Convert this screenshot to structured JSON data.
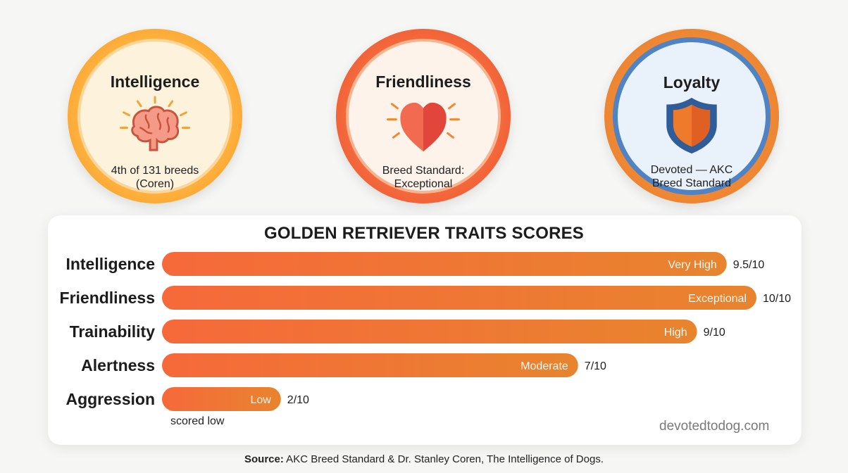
{
  "badges": [
    {
      "title": "Intelligence",
      "caption_line1": "4th of 131 breeds",
      "caption_line2": "(Coren)",
      "icon": "brain-icon"
    },
    {
      "title": "Friendliness",
      "caption_line1": "Breed Standard:",
      "caption_line2": "Exceptional",
      "icon": "heart-icon"
    },
    {
      "title": "Loyalty",
      "caption_line1": "Devoted — AKC",
      "caption_line2": "Breed Standard",
      "icon": "shield-icon"
    }
  ],
  "chart_data": {
    "type": "bar",
    "orientation": "horizontal",
    "title": "GOLDEN RETRIEVER TRAITS SCORES",
    "categories": [
      "Intelligence",
      "Friendliness",
      "Trainability",
      "Alertness",
      "Aggression"
    ],
    "values": [
      9.5,
      10,
      9,
      7,
      2
    ],
    "value_labels": [
      "9.5/10",
      "10/10",
      "9/10",
      "7/10",
      "2/10"
    ],
    "bar_labels": [
      "Very High",
      "Exceptional",
      "High",
      "Moderate",
      "Low"
    ],
    "xlim": [
      0,
      10
    ],
    "grid": false,
    "legend": "none",
    "colors": {
      "bar_start": "#f6693a",
      "bar_end": "#e8842e"
    }
  },
  "note": "scored low",
  "watermark": "devotedtodog.com",
  "source": {
    "label": "Source:",
    "text": " AKC Breed Standard & Dr. Stanley Coren, The Intelligence of Dogs."
  }
}
